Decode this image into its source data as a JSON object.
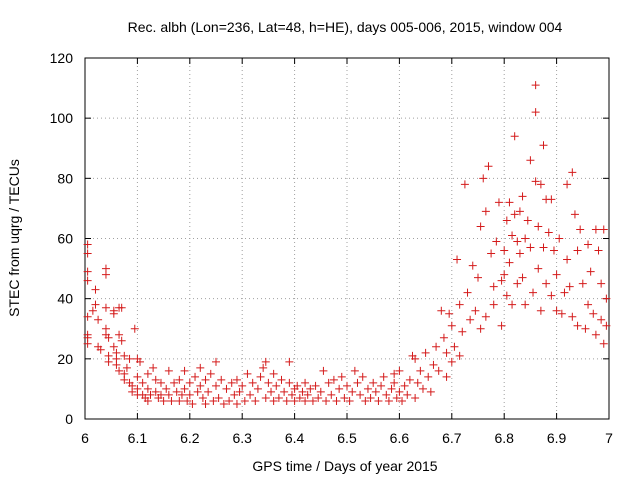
{
  "chart_data": {
    "type": "scatter",
    "title": "Rec. albh (Lon=236, Lat=48, h=HE), days 005-006, 2015, window 004",
    "xlabel": "GPS time / Days of year 2015",
    "ylabel": "STEC from uqrg / TECUs",
    "xlim": [
      6.0,
      7.0
    ],
    "ylim": [
      0,
      120
    ],
    "xticks": [
      6.0,
      6.1,
      6.2,
      6.3,
      6.4,
      6.5,
      6.6,
      6.7,
      6.8,
      6.9,
      7.0
    ],
    "xtick_labels": [
      "6",
      "6.1",
      "6.2",
      "6.3",
      "6.4",
      "6.5",
      "6.6",
      "6.7",
      "6.8",
      "6.9",
      "7"
    ],
    "yticks": [
      0,
      20,
      40,
      60,
      80,
      100,
      120
    ],
    "ytick_labels": [
      "0",
      "20",
      "40",
      "60",
      "80",
      "100",
      "120"
    ],
    "grid": true,
    "marker": "+",
    "color": "#d41b1b",
    "series": [
      {
        "name": "STEC",
        "points": [
          [
            6.005,
            58
          ],
          [
            6.005,
            55
          ],
          [
            6.005,
            49
          ],
          [
            6.005,
            46
          ],
          [
            6.005,
            34
          ],
          [
            6.005,
            28
          ],
          [
            6.005,
            27
          ],
          [
            6.005,
            25
          ],
          [
            6.015,
            36
          ],
          [
            6.02,
            43
          ],
          [
            6.02,
            38
          ],
          [
            6.025,
            33
          ],
          [
            6.025,
            24
          ],
          [
            6.03,
            23
          ],
          [
            6.04,
            50
          ],
          [
            6.04,
            48
          ],
          [
            6.04,
            37
          ],
          [
            6.04,
            30
          ],
          [
            6.04,
            28
          ],
          [
            6.045,
            27
          ],
          [
            6.045,
            21
          ],
          [
            6.045,
            19
          ],
          [
            6.055,
            36
          ],
          [
            6.055,
            35
          ],
          [
            6.055,
            24
          ],
          [
            6.06,
            22
          ],
          [
            6.06,
            20
          ],
          [
            6.06,
            18
          ],
          [
            6.065,
            37
          ],
          [
            6.065,
            28
          ],
          [
            6.065,
            16
          ],
          [
            6.07,
            37
          ],
          [
            6.07,
            26
          ],
          [
            6.075,
            21
          ],
          [
            6.075,
            15
          ],
          [
            6.075,
            13
          ],
          [
            6.08,
            17
          ],
          [
            6.085,
            20
          ],
          [
            6.085,
            12
          ],
          [
            6.09,
            11
          ],
          [
            6.09,
            9
          ],
          [
            6.095,
            30
          ],
          [
            6.1,
            20
          ],
          [
            6.1,
            14
          ],
          [
            6.1,
            10
          ],
          [
            6.1,
            8
          ],
          [
            6.105,
            19
          ],
          [
            6.11,
            12
          ],
          [
            6.11,
            8
          ],
          [
            6.115,
            7
          ],
          [
            6.12,
            15
          ],
          [
            6.12,
            10
          ],
          [
            6.12,
            6
          ],
          [
            6.125,
            8
          ],
          [
            6.13,
            17
          ],
          [
            6.135,
            13
          ],
          [
            6.135,
            9
          ],
          [
            6.14,
            7
          ],
          [
            6.145,
            12
          ],
          [
            6.145,
            8
          ],
          [
            6.15,
            6
          ],
          [
            6.155,
            10
          ],
          [
            6.16,
            16
          ],
          [
            6.16,
            8
          ],
          [
            6.165,
            6
          ],
          [
            6.17,
            12
          ],
          [
            6.175,
            9
          ],
          [
            6.18,
            13
          ],
          [
            6.18,
            6
          ],
          [
            6.185,
            8
          ],
          [
            6.19,
            16
          ],
          [
            6.19,
            10
          ],
          [
            6.195,
            6
          ],
          [
            6.2,
            12
          ],
          [
            6.2,
            8
          ],
          [
            6.205,
            5
          ],
          [
            6.21,
            14
          ],
          [
            6.215,
            9
          ],
          [
            6.22,
            17
          ],
          [
            6.22,
            11
          ],
          [
            6.225,
            7
          ],
          [
            6.23,
            13
          ],
          [
            6.23,
            5
          ],
          [
            6.235,
            9
          ],
          [
            6.24,
            15
          ],
          [
            6.245,
            6
          ],
          [
            6.25,
            19
          ],
          [
            6.25,
            11
          ],
          [
            6.255,
            7
          ],
          [
            6.26,
            13
          ],
          [
            6.265,
            5
          ],
          [
            6.27,
            10
          ],
          [
            6.275,
            6
          ],
          [
            6.28,
            12
          ],
          [
            6.285,
            8
          ],
          [
            6.29,
            13
          ],
          [
            6.29,
            5
          ],
          [
            6.295,
            9
          ],
          [
            6.3,
            11
          ],
          [
            6.305,
            6
          ],
          [
            6.31,
            15
          ],
          [
            6.315,
            8
          ],
          [
            6.32,
            12
          ],
          [
            6.325,
            6
          ],
          [
            6.33,
            10
          ],
          [
            6.335,
            14
          ],
          [
            6.34,
            17
          ],
          [
            6.345,
            19
          ],
          [
            6.345,
            7
          ],
          [
            6.35,
            12
          ],
          [
            6.355,
            9
          ],
          [
            6.36,
            15
          ],
          [
            6.36,
            6
          ],
          [
            6.365,
            11
          ],
          [
            6.37,
            7
          ],
          [
            6.375,
            13
          ],
          [
            6.38,
            9
          ],
          [
            6.385,
            6
          ],
          [
            6.39,
            19
          ],
          [
            6.39,
            12
          ],
          [
            6.395,
            8
          ],
          [
            6.4,
            10
          ],
          [
            6.4,
            6
          ],
          [
            6.405,
            11
          ],
          [
            6.41,
            7
          ],
          [
            6.415,
            9
          ],
          [
            6.42,
            12
          ],
          [
            6.42,
            6
          ],
          [
            6.425,
            8
          ],
          [
            6.43,
            10
          ],
          [
            6.435,
            6
          ],
          [
            6.44,
            11
          ],
          [
            6.445,
            7
          ],
          [
            6.45,
            9
          ],
          [
            6.455,
            16
          ],
          [
            6.46,
            6
          ],
          [
            6.465,
            12
          ],
          [
            6.47,
            8
          ],
          [
            6.475,
            13
          ],
          [
            6.48,
            6
          ],
          [
            6.485,
            10
          ],
          [
            6.49,
            14
          ],
          [
            6.495,
            7
          ],
          [
            6.5,
            11
          ],
          [
            6.505,
            6
          ],
          [
            6.51,
            9
          ],
          [
            6.515,
            16
          ],
          [
            6.52,
            12
          ],
          [
            6.525,
            8
          ],
          [
            6.53,
            14
          ],
          [
            6.535,
            6
          ],
          [
            6.54,
            10
          ],
          [
            6.545,
            7
          ],
          [
            6.55,
            12
          ],
          [
            6.555,
            9
          ],
          [
            6.56,
            6
          ],
          [
            6.565,
            11
          ],
          [
            6.57,
            14
          ],
          [
            6.575,
            8
          ],
          [
            6.58,
            6
          ],
          [
            6.585,
            10
          ],
          [
            6.59,
            12
          ],
          [
            6.59,
            15
          ],
          [
            6.595,
            7
          ],
          [
            6.6,
            9
          ],
          [
            6.6,
            16
          ],
          [
            6.605,
            6
          ],
          [
            6.61,
            11
          ],
          [
            6.615,
            8
          ],
          [
            6.62,
            13
          ],
          [
            6.625,
            21
          ],
          [
            6.63,
            20
          ],
          [
            6.63,
            7
          ],
          [
            6.635,
            12
          ],
          [
            6.64,
            16
          ],
          [
            6.645,
            10
          ],
          [
            6.65,
            22
          ],
          [
            6.655,
            14
          ],
          [
            6.66,
            9
          ],
          [
            6.665,
            18
          ],
          [
            6.67,
            24
          ],
          [
            6.675,
            16
          ],
          [
            6.68,
            36
          ],
          [
            6.685,
            27
          ],
          [
            6.69,
            22
          ],
          [
            6.69,
            14
          ],
          [
            6.695,
            35
          ],
          [
            6.7,
            31
          ],
          [
            6.7,
            19
          ],
          [
            6.705,
            24
          ],
          [
            6.71,
            53
          ],
          [
            6.715,
            38
          ],
          [
            6.715,
            21
          ],
          [
            6.72,
            29
          ],
          [
            6.725,
            78
          ],
          [
            6.73,
            42
          ],
          [
            6.735,
            33
          ],
          [
            6.74,
            51
          ],
          [
            6.745,
            36
          ],
          [
            6.75,
            47
          ],
          [
            6.755,
            64
          ],
          [
            6.755,
            30
          ],
          [
            6.76,
            80
          ],
          [
            6.765,
            69
          ],
          [
            6.765,
            34
          ],
          [
            6.77,
            84
          ],
          [
            6.775,
            55
          ],
          [
            6.78,
            44
          ],
          [
            6.78,
            38
          ],
          [
            6.785,
            59
          ],
          [
            6.79,
            72
          ],
          [
            6.795,
            46
          ],
          [
            6.795,
            31
          ],
          [
            6.8,
            56
          ],
          [
            6.8,
            48
          ],
          [
            6.805,
            66
          ],
          [
            6.805,
            41
          ],
          [
            6.81,
            72
          ],
          [
            6.81,
            52
          ],
          [
            6.815,
            61
          ],
          [
            6.815,
            38
          ],
          [
            6.82,
            94
          ],
          [
            6.82,
            68
          ],
          [
            6.825,
            59
          ],
          [
            6.825,
            45
          ],
          [
            6.83,
            69
          ],
          [
            6.83,
            55
          ],
          [
            6.835,
            74
          ],
          [
            6.835,
            47
          ],
          [
            6.84,
            60
          ],
          [
            6.84,
            38
          ],
          [
            6.845,
            66
          ],
          [
            6.85,
            86
          ],
          [
            6.85,
            57
          ],
          [
            6.855,
            42
          ],
          [
            6.86,
            111
          ],
          [
            6.86,
            102
          ],
          [
            6.86,
            79
          ],
          [
            6.865,
            64
          ],
          [
            6.865,
            50
          ],
          [
            6.87,
            78
          ],
          [
            6.87,
            36
          ],
          [
            6.875,
            91
          ],
          [
            6.875,
            57
          ],
          [
            6.88,
            73
          ],
          [
            6.88,
            45
          ],
          [
            6.885,
            62
          ],
          [
            6.89,
            73
          ],
          [
            6.89,
            41
          ],
          [
            6.895,
            56
          ],
          [
            6.9,
            48
          ],
          [
            6.9,
            36
          ],
          [
            6.905,
            60
          ],
          [
            6.91,
            35
          ],
          [
            6.915,
            42
          ],
          [
            6.92,
            78
          ],
          [
            6.92,
            53
          ],
          [
            6.925,
            44
          ],
          [
            6.93,
            82
          ],
          [
            6.93,
            34
          ],
          [
            6.935,
            68
          ],
          [
            6.94,
            56
          ],
          [
            6.94,
            31
          ],
          [
            6.945,
            63
          ],
          [
            6.95,
            45
          ],
          [
            6.955,
            30
          ],
          [
            6.96,
            58
          ],
          [
            6.96,
            38
          ],
          [
            6.965,
            49
          ],
          [
            6.97,
            35
          ],
          [
            6.975,
            63
          ],
          [
            6.975,
            28
          ],
          [
            6.98,
            56
          ],
          [
            6.985,
            45
          ],
          [
            6.985,
            33
          ],
          [
            6.99,
            63
          ],
          [
            6.99,
            25
          ],
          [
            6.995,
            40
          ],
          [
            6.995,
            31
          ]
        ]
      }
    ]
  }
}
